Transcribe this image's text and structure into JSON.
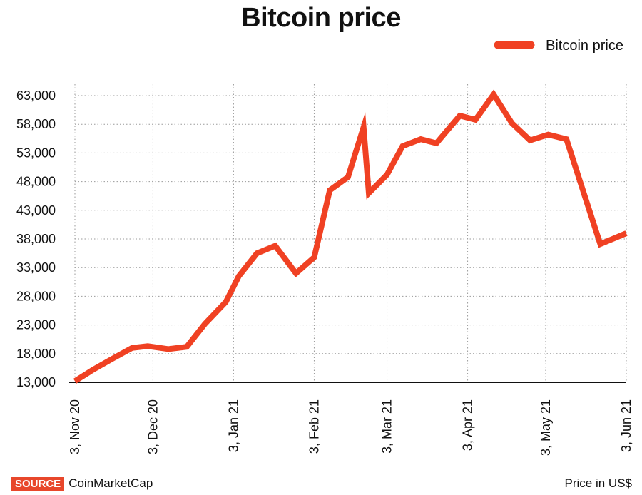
{
  "chart_data": {
    "type": "line",
    "title": "Bitcoin price",
    "legend": {
      "label": "Bitcoin price",
      "position": "top-right"
    },
    "color": "#f04123",
    "ylim": [
      13000,
      63000
    ],
    "yticks": [
      13000,
      18000,
      23000,
      28000,
      33000,
      38000,
      43000,
      48000,
      53000,
      58000,
      63000
    ],
    "ytick_labels": [
      "13,000",
      "18,000",
      "23,000",
      "28,000",
      "33,000",
      "38,000",
      "43,000",
      "48,000",
      "53,000",
      "58,000",
      "63,000"
    ],
    "xlim": [
      0,
      212
    ],
    "xticks": [
      {
        "day": 0,
        "label": "3, Nov 20"
      },
      {
        "day": 30,
        "label": "3, Dec 20"
      },
      {
        "day": 61,
        "label": "3, Jan 21"
      },
      {
        "day": 92,
        "label": "3, Feb 21"
      },
      {
        "day": 120,
        "label": "3, Mar 21"
      },
      {
        "day": 151,
        "label": "3, Apr 21"
      },
      {
        "day": 181,
        "label": "3, May 21"
      },
      {
        "day": 212,
        "label": "3, Jun 21"
      }
    ],
    "grid": true,
    "series": [
      {
        "name": "Bitcoin price",
        "x": [
          0,
          7,
          14,
          22,
          28,
          36,
          43,
          50,
          58,
          63,
          70,
          77,
          85,
          92,
          98,
          105,
          111,
          113,
          120,
          126,
          133,
          139,
          148,
          154,
          161,
          168,
          175,
          182,
          189,
          196,
          202,
          212
        ],
        "y": [
          13200,
          15200,
          17000,
          19000,
          19300,
          18800,
          19200,
          23200,
          27000,
          31500,
          35500,
          36800,
          32000,
          34800,
          46500,
          48800,
          57500,
          46000,
          49200,
          54200,
          55400,
          54700,
          59500,
          58800,
          63200,
          58200,
          55200,
          56200,
          55400,
          45500,
          37100,
          39000
        ]
      }
    ]
  },
  "footer": {
    "source_badge": "SOURCE",
    "source_name": "CoinMarketCap",
    "units_note": "Price in US$"
  }
}
